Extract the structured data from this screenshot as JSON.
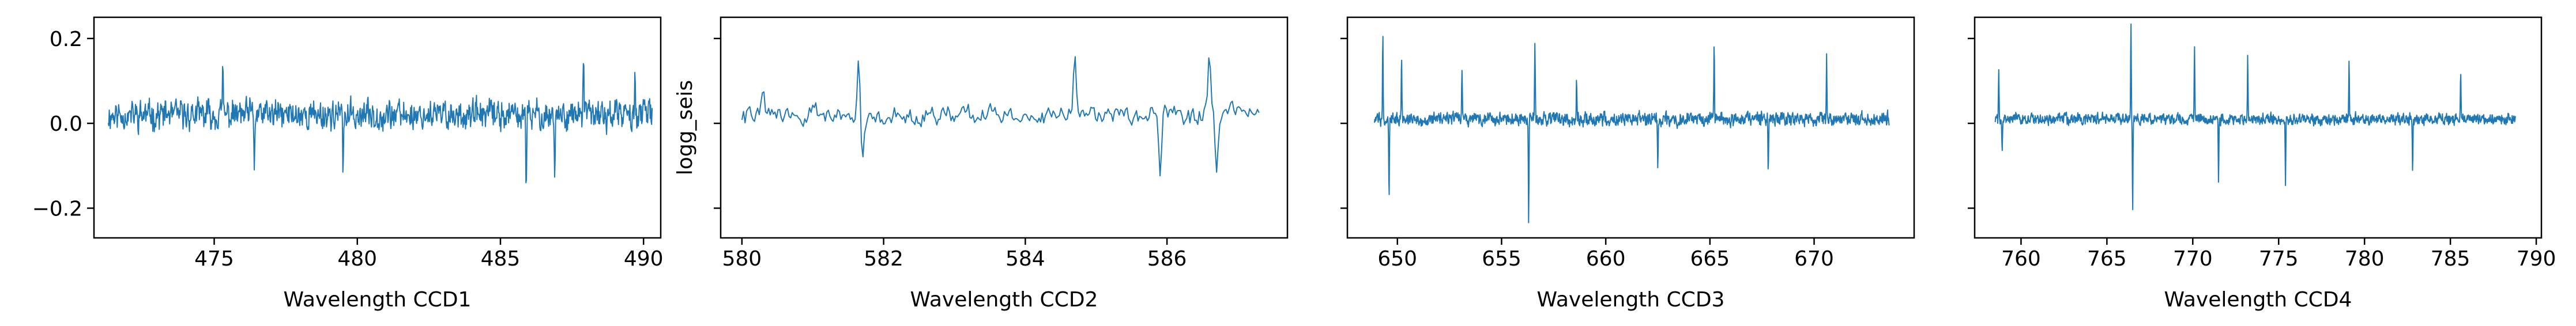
{
  "figure": {
    "line_color": "#1f77b4",
    "axes_color": "#000000",
    "background": "#ffffff"
  },
  "chart_data": [
    {
      "type": "line",
      "title": "",
      "xlabel": "Wavelength CCD1",
      "ylabel": "",
      "xlim": [
        470.8,
        490.6
      ],
      "ylim": [
        -0.27,
        0.25
      ],
      "xticks": [
        475,
        480,
        485,
        490
      ],
      "yticks": [
        -0.2,
        0.0,
        0.2
      ],
      "ytick_labels": [
        "−0.2",
        "0.0",
        "0.2"
      ],
      "show_ytick_labels": true,
      "grid": false,
      "series": [
        {
          "x_start": 471.3,
          "x_end": 490.3,
          "n": 1100,
          "baseline": 0.02,
          "noise": 0.04,
          "seed": 11,
          "features": [
            {
              "x": 485.9,
              "y": -0.21
            },
            {
              "x": 489.7,
              "y": 0.1
            },
            {
              "x": 487.9,
              "y": 0.13
            },
            {
              "x": 486.9,
              "y": -0.15
            },
            {
              "x": 476.4,
              "y": -0.13
            },
            {
              "x": 475.3,
              "y": 0.11
            },
            {
              "x": 479.5,
              "y": -0.14
            }
          ]
        }
      ]
    },
    {
      "type": "line",
      "title": "",
      "xlabel": "Wavelength CCD2",
      "ylabel": "logg_seis",
      "xlim": [
        579.7,
        587.7
      ],
      "ylim": [
        -0.27,
        0.25
      ],
      "xticks": [
        580,
        582,
        584,
        586
      ],
      "yticks": [
        -0.2,
        0.0,
        0.2
      ],
      "ytick_labels": [
        "",
        "",
        ""
      ],
      "show_ytick_labels": false,
      "grid": false,
      "series": [
        {
          "x_start": 580.0,
          "x_end": 587.3,
          "n": 330,
          "baseline": 0.02,
          "noise": 0.025,
          "seed": 22,
          "features": [
            {
              "x": 581.65,
              "y": 0.12
            },
            {
              "x": 581.7,
              "y": -0.13
            },
            {
              "x": 585.9,
              "y": -0.15
            },
            {
              "x": 586.6,
              "y": 0.16
            },
            {
              "x": 586.7,
              "y": -0.13
            },
            {
              "x": 584.7,
              "y": 0.13
            },
            {
              "x": 580.3,
              "y": 0.07
            }
          ]
        }
      ]
    },
    {
      "type": "line",
      "title": "",
      "xlabel": "Wavelength CCD3",
      "ylabel": "",
      "xlim": [
        647.6,
        674.8
      ],
      "ylim": [
        -0.27,
        0.25
      ],
      "xticks": [
        650,
        655,
        660,
        665,
        670
      ],
      "yticks": [
        -0.2,
        0.0,
        0.2
      ],
      "ytick_labels": [
        "",
        "",
        ""
      ],
      "show_ytick_labels": false,
      "grid": false,
      "series": [
        {
          "x_start": 648.9,
          "x_end": 673.6,
          "n": 1400,
          "baseline": 0.01,
          "noise": 0.018,
          "seed": 33,
          "features": [
            {
              "x": 649.3,
              "y": 0.22
            },
            {
              "x": 649.6,
              "y": -0.17
            },
            {
              "x": 650.2,
              "y": 0.14
            },
            {
              "x": 656.3,
              "y": -0.24
            },
            {
              "x": 656.6,
              "y": 0.17
            },
            {
              "x": 662.5,
              "y": -0.13
            },
            {
              "x": 665.2,
              "y": 0.18
            },
            {
              "x": 667.8,
              "y": -0.12
            },
            {
              "x": 670.6,
              "y": 0.15
            },
            {
              "x": 653.1,
              "y": 0.12
            },
            {
              "x": 658.6,
              "y": 0.11
            }
          ]
        }
      ]
    },
    {
      "type": "line",
      "title": "",
      "xlabel": "Wavelength CCD4",
      "ylabel": "",
      "xlim": [
        757.3,
        790.3
      ],
      "ylim": [
        -0.27,
        0.25
      ],
      "xticks": [
        760,
        765,
        770,
        775,
        780,
        785,
        790
      ],
      "yticks": [
        -0.2,
        0.0,
        0.2
      ],
      "ytick_labels": [
        "",
        "",
        ""
      ],
      "show_ytick_labels": false,
      "grid": false,
      "series": [
        {
          "x_start": 758.5,
          "x_end": 788.8,
          "n": 1500,
          "baseline": 0.01,
          "noise": 0.015,
          "seed": 44,
          "features": [
            {
              "x": 758.7,
              "y": 0.11
            },
            {
              "x": 758.9,
              "y": -0.07
            },
            {
              "x": 766.4,
              "y": 0.23
            },
            {
              "x": 766.5,
              "y": -0.22
            },
            {
              "x": 770.1,
              "y": 0.17
            },
            {
              "x": 771.5,
              "y": -0.16
            },
            {
              "x": 773.2,
              "y": 0.15
            },
            {
              "x": 775.4,
              "y": -0.15
            },
            {
              "x": 779.1,
              "y": 0.14
            },
            {
              "x": 782.8,
              "y": -0.12
            },
            {
              "x": 785.6,
              "y": 0.12
            }
          ]
        }
      ]
    }
  ]
}
